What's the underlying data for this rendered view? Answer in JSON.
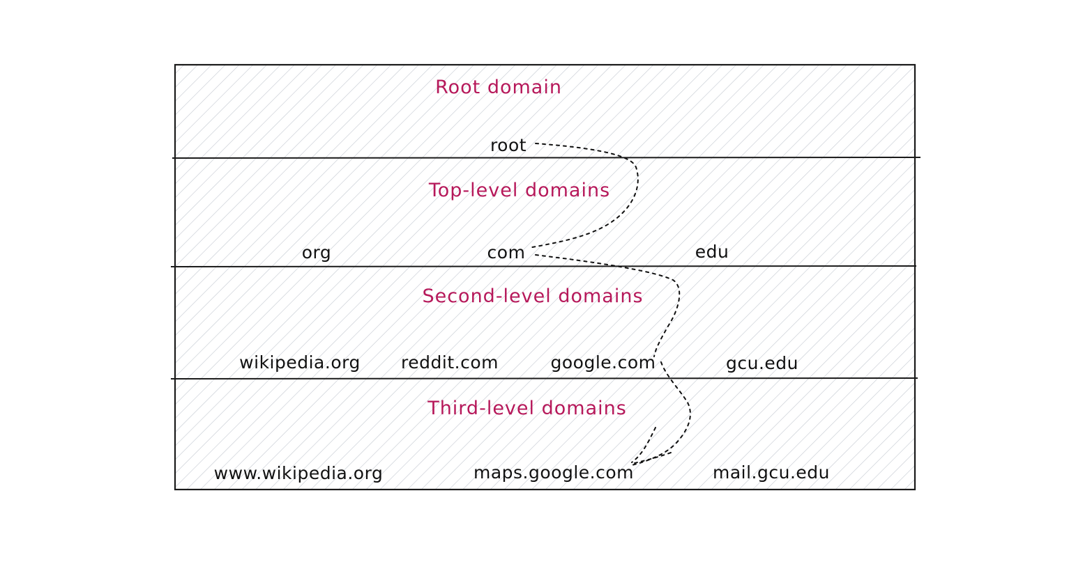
{
  "layers": [
    {
      "title": "Root domain",
      "nodes": [
        {
          "id": "root",
          "label": "root"
        }
      ]
    },
    {
      "title": "Top-level domains",
      "nodes": [
        {
          "id": "org",
          "label": "org"
        },
        {
          "id": "com",
          "label": "com"
        },
        {
          "id": "edu",
          "label": "edu"
        }
      ]
    },
    {
      "title": "Second-level domains",
      "nodes": [
        {
          "id": "wikipedia-org",
          "label": "wikipedia.org"
        },
        {
          "id": "reddit-com",
          "label": "reddit.com"
        },
        {
          "id": "google-com",
          "label": "google.com"
        },
        {
          "id": "gcu-edu",
          "label": "gcu.edu"
        }
      ]
    },
    {
      "title": "Third-level domains",
      "nodes": [
        {
          "id": "www-wikipedia-org",
          "label": "www.wikipedia.org"
        },
        {
          "id": "maps-google-com",
          "label": "maps.google.com"
        },
        {
          "id": "mail-gcu-edu",
          "label": "mail.gcu.edu"
        }
      ]
    }
  ],
  "links": [
    {
      "from": "root",
      "to": "com"
    },
    {
      "from": "com",
      "to": "google-com"
    },
    {
      "from": "google-com",
      "to": "maps-google-com"
    }
  ],
  "colors": {
    "title": "#b6185a",
    "text": "#111111",
    "hatch": "#c7ccd4",
    "frame": "#1a1a1a"
  }
}
